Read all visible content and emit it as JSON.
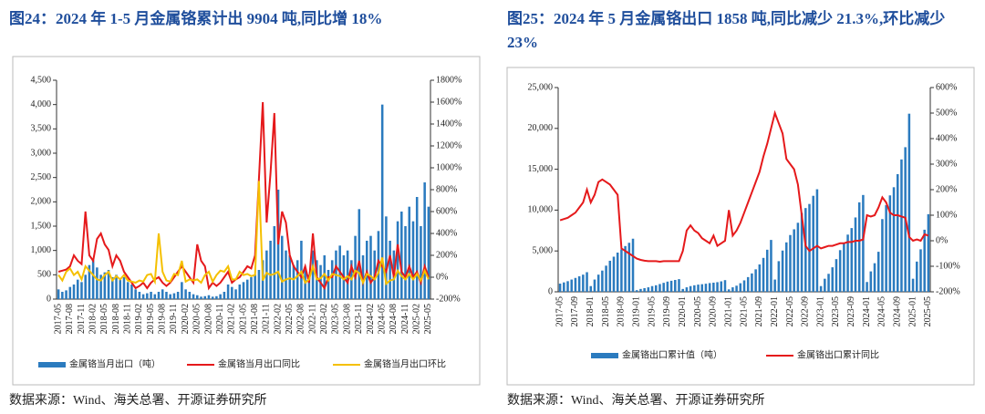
{
  "chart_data": [
    {
      "type": "bar_line",
      "title": "图24：2024 年 1-5 月金属铬累计出 9904 吨,同比增 18%",
      "source": "数据来源：Wind、海关总署、开源证券研究所",
      "categories": [
        "2017-05",
        null,
        null,
        "2017-08",
        null,
        null,
        "2017-11",
        null,
        null,
        "2018-02",
        null,
        null,
        "2018-05",
        null,
        null,
        "2018-08",
        null,
        null,
        "2018-11",
        null,
        null,
        "2019-02",
        null,
        null,
        "2019-05",
        null,
        null,
        "2019-08",
        null,
        null,
        "2019-11",
        null,
        null,
        "2020-02",
        null,
        null,
        "2020-05",
        null,
        null,
        "2020-08",
        null,
        null,
        "2020-11",
        null,
        null,
        "2021-02",
        null,
        null,
        "2021-05",
        null,
        null,
        "2021-08",
        null,
        null,
        "2021-11",
        null,
        null,
        "2022-02",
        null,
        null,
        "2022-05",
        null,
        null,
        "2022-08",
        null,
        null,
        "2022-11",
        null,
        null,
        "2023-02",
        null,
        null,
        "2023-05",
        null,
        null,
        "2023-08",
        null,
        null,
        "2023-11",
        null,
        null,
        "2024-02",
        null,
        null,
        "2024-05",
        null,
        null,
        "2024-08",
        null,
        null,
        "2024-11",
        null,
        null,
        "2025-02",
        null,
        null,
        "2025-05"
      ],
      "series": [
        {
          "name": "金属铬当月出口（吨）",
          "render": "bar",
          "color": "#2b7bbf",
          "values": [
            200,
            150,
            180,
            250,
            300,
            400,
            350,
            500,
            700,
            800,
            650,
            500,
            550,
            600,
            450,
            500,
            400,
            450,
            350,
            300,
            200,
            150,
            100,
            120,
            150,
            100,
            150,
            200,
            150,
            100,
            120,
            150,
            350,
            200,
            150,
            100,
            80,
            50,
            60,
            80,
            50,
            60,
            100,
            150,
            300,
            250,
            200,
            300,
            350,
            400,
            450,
            500,
            600,
            800,
            1000,
            1200,
            1500,
            2250,
            1300,
            1000,
            900,
            700,
            800,
            1200,
            600,
            500,
            1000,
            800,
            700,
            900,
            600,
            800,
            1000,
            1100,
            900,
            1000,
            800,
            1300,
            1850,
            900,
            1200,
            1300,
            1000,
            1400,
            4000,
            1700,
            1200,
            1000,
            1600,
            1800,
            1500,
            1900,
            1600,
            2100,
            1500,
            2400,
            1900
          ]
        },
        {
          "name": "金属铬当月出口同比",
          "render": "line",
          "axis": "y2",
          "color": "#e5191b",
          "values": [
            50,
            60,
            70,
            100,
            200,
            150,
            120,
            600,
            200,
            150,
            350,
            400,
            300,
            250,
            100,
            200,
            150,
            50,
            0,
            -50,
            -100,
            -80,
            -50,
            -100,
            -50,
            -20,
            0,
            -50,
            -80,
            -50,
            0,
            50,
            100,
            50,
            0,
            -50,
            300,
            150,
            100,
            -100,
            -50,
            -80,
            -50,
            0,
            50,
            -50,
            -20,
            0,
            50,
            100,
            80,
            200,
            900,
            1600,
            500,
            950,
            1500,
            300,
            600,
            500,
            200,
            100,
            50,
            0,
            100,
            -50,
            400,
            0,
            -50,
            -100,
            0,
            0,
            100,
            50,
            0,
            -50,
            100,
            0,
            150,
            -50,
            50,
            -50,
            0,
            150,
            100,
            50,
            200,
            0,
            300,
            50,
            0,
            100,
            0,
            50,
            -50,
            100,
            0
          ]
        },
        {
          "name": "金属铬当月出口环比",
          "render": "line",
          "axis": "y2",
          "color": "#f5c000",
          "values": [
            20,
            -30,
            50,
            80,
            20,
            50,
            -20,
            100,
            60,
            20,
            -20,
            -30,
            20,
            50,
            -30,
            10,
            -20,
            20,
            -30,
            -40,
            -50,
            -30,
            -40,
            20,
            30,
            -40,
            400,
            50,
            -30,
            -40,
            30,
            20,
            150,
            -40,
            -20,
            -30,
            -20,
            -50,
            20,
            50,
            -40,
            20,
            60,
            50,
            100,
            -20,
            -20,
            50,
            20,
            30,
            10,
            20,
            880,
            -30,
            40,
            20,
            30,
            50,
            -40,
            -20,
            -10,
            -20,
            10,
            50,
            -50,
            -20,
            100,
            -20,
            -10,
            30,
            -30,
            30,
            20,
            10,
            -20,
            10,
            -20,
            60,
            40,
            -50,
            30,
            10,
            -20,
            40,
            180,
            -60,
            -30,
            -20,
            60,
            10,
            -20,
            30,
            -20,
            30,
            -30,
            60,
            -20
          ]
        }
      ],
      "ylim": [
        0,
        4500
      ],
      "yticks": [
        0,
        500,
        {
          "value": 1000,
          "label": "1,000"
        },
        {
          "value": 1500,
          "label": "1,500"
        },
        {
          "value": 2000,
          "label": "2,000"
        },
        {
          "value": 2500,
          "label": "2,500"
        },
        {
          "value": 3000,
          "label": "3,000"
        },
        {
          "value": 3500,
          "label": "3,500"
        },
        {
          "value": 4000,
          "label": "4,000"
        },
        {
          "value": 4500,
          "label": "4,500"
        }
      ],
      "y2lim": [
        -200,
        1800
      ],
      "y2ticks": [
        {
          "value": -200,
          "label": "-200%"
        },
        {
          "value": 0,
          "label": "0%"
        },
        {
          "value": 200,
          "label": "200%"
        },
        {
          "value": 400,
          "label": "400%"
        },
        {
          "value": 600,
          "label": "600%"
        },
        {
          "value": 800,
          "label": "800%"
        },
        {
          "value": 1000,
          "label": "1000%"
        },
        {
          "value": 1200,
          "label": "1200%"
        },
        {
          "value": 1400,
          "label": "1400%"
        },
        {
          "value": 1600,
          "label": "1600%"
        },
        {
          "value": 1800,
          "label": "1800%"
        }
      ],
      "legend": "bottom"
    },
    {
      "type": "bar_line",
      "title": "图25：2024 年 5 月金属铬出口 1858 吨,同比减少 21.3%,环比减少 23%",
      "source": "数据来源：Wind、海关总署、开源证券研究所",
      "categories": [
        "2017-05",
        null,
        null,
        null,
        "2017-09",
        null,
        null,
        null,
        "2018-01",
        null,
        null,
        null,
        "2018-05",
        null,
        null,
        null,
        "2018-09",
        null,
        null,
        null,
        "2019-01",
        null,
        null,
        null,
        "2019-05",
        null,
        null,
        null,
        "2019-09",
        null,
        null,
        null,
        "2020-01",
        null,
        null,
        null,
        "2020-05",
        null,
        null,
        null,
        "2020-09",
        null,
        null,
        null,
        "2021-01",
        null,
        null,
        null,
        "2021-05",
        null,
        null,
        null,
        "2021-09",
        null,
        null,
        null,
        "2022-01",
        null,
        null,
        null,
        "2022-05",
        null,
        null,
        null,
        "2022-09",
        null,
        null,
        null,
        "2023-01",
        null,
        null,
        null,
        "2023-05",
        null,
        null,
        null,
        "2023-09",
        null,
        null,
        null,
        "2024-01",
        null,
        null,
        null,
        "2024-05",
        null,
        null,
        null,
        "2024-09",
        null,
        null,
        null,
        "2025-01",
        null,
        null,
        null,
        "2025-05"
      ],
      "series": [
        {
          "name": "金属铬出口累计值（吨）",
          "render": "bar",
          "color": "#2b7bbf",
          "values": [
            1000,
            1150,
            1300,
            1500,
            1700,
            1900,
            2100,
            2400,
            700,
            1500,
            2100,
            2600,
            3200,
            3800,
            4300,
            4800,
            5200,
            5600,
            6000,
            6500,
            200,
            350,
            450,
            550,
            700,
            800,
            950,
            1100,
            1250,
            1350,
            1450,
            1550,
            350,
            550,
            700,
            800,
            880,
            930,
            990,
            1070,
            1120,
            1180,
            1280,
            1430,
            300,
            550,
            750,
            1050,
            1400,
            1800,
            2250,
            2750,
            3350,
            4150,
            5150,
            6350,
            1500,
            3750,
            5050,
            6050,
            6950,
            7650,
            8450,
            9650,
            10250,
            10750,
            11750,
            12550,
            700,
            1600,
            2200,
            3000,
            4000,
            5100,
            6000,
            7000,
            7800,
            9100,
            10950,
            11850,
            1200,
            2500,
            3500,
            4900,
            8900,
            10600,
            11800,
            12800,
            14400,
            16200,
            17700,
            21800,
            1600,
            3700,
            5200,
            7600,
            9500
          ]
        },
        {
          "name": "金属铬出口累计同比",
          "render": "line",
          "axis": "y2",
          "color": "#e5191b",
          "values": [
            80,
            85,
            90,
            100,
            110,
            130,
            150,
            200,
            150,
            180,
            230,
            240,
            230,
            220,
            200,
            180,
            -30,
            -40,
            -50,
            -60,
            -70,
            -75,
            -78,
            -80,
            -80,
            -80,
            -82,
            -80,
            -80,
            -80,
            -80,
            -80,
            -40,
            40,
            60,
            40,
            30,
            10,
            0,
            -10,
            20,
            -20,
            -10,
            0,
            120,
            20,
            40,
            70,
            110,
            150,
            190,
            230,
            270,
            330,
            380,
            440,
            500,
            460,
            420,
            320,
            300,
            280,
            220,
            100,
            -20,
            -40,
            -30,
            -20,
            -30,
            -25,
            -20,
            -20,
            -15,
            -10,
            -10,
            -5,
            -5,
            0,
            0,
            5,
            100,
            95,
            100,
            130,
            170,
            150,
            110,
            100,
            100,
            95,
            90,
            15,
            0,
            5,
            0,
            25,
            20
          ]
        }
      ],
      "ylim": [
        0,
        25000
      ],
      "yticks": [
        0,
        {
          "value": 5000,
          "label": "5,000"
        },
        {
          "value": 10000,
          "label": "10,000"
        },
        {
          "value": 15000,
          "label": "15,000"
        },
        {
          "value": 20000,
          "label": "20,000"
        },
        {
          "value": 25000,
          "label": "25,000"
        }
      ],
      "y2lim": [
        -200,
        600
      ],
      "y2ticks": [
        {
          "value": -200,
          "label": "-200%"
        },
        {
          "value": -100,
          "label": "-100%"
        },
        {
          "value": 0,
          "label": "0%"
        },
        {
          "value": 100,
          "label": "100%"
        },
        {
          "value": 200,
          "label": "200%"
        },
        {
          "value": 300,
          "label": "300%"
        },
        {
          "value": 400,
          "label": "400%"
        },
        {
          "value": 500,
          "label": "500%"
        },
        {
          "value": 600,
          "label": "600%"
        }
      ],
      "legend": "bottom"
    }
  ]
}
